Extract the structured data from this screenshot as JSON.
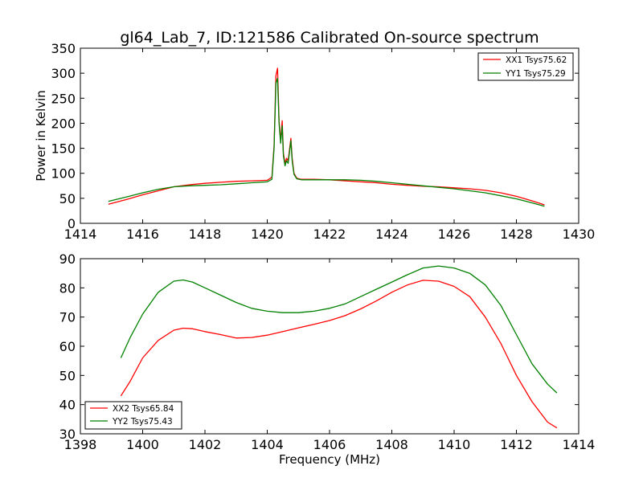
{
  "title": "gl64_Lab_7, ID:121586 Calibrated On-source spectrum",
  "colors": {
    "xx": "#ff0000",
    "yy": "#008000"
  },
  "chart_data": [
    {
      "type": "line",
      "ylabel": "Power in Kelvin",
      "xlabel": "",
      "xlim": [
        1414,
        1430
      ],
      "ylim": [
        0,
        350
      ],
      "xticks": [
        1414,
        1416,
        1418,
        1420,
        1422,
        1424,
        1426,
        1428,
        1430
      ],
      "yticks": [
        0,
        50,
        100,
        150,
        200,
        250,
        300,
        350
      ],
      "grid": false,
      "legend_position": "top-right",
      "series": [
        {
          "name": "XX1 Tsys75.62",
          "color": "#ff0000",
          "x": [
            1414.9,
            1415.5,
            1416,
            1416.5,
            1417,
            1417.5,
            1418,
            1418.5,
            1419,
            1419.5,
            1420,
            1420.15,
            1420.22,
            1420.28,
            1420.33,
            1420.38,
            1420.43,
            1420.48,
            1420.52,
            1420.57,
            1420.62,
            1420.67,
            1420.72,
            1420.76,
            1420.8,
            1420.86,
            1420.95,
            1421.1,
            1421.5,
            1422,
            1422.5,
            1423,
            1423.5,
            1424,
            1424.5,
            1425,
            1425.5,
            1426,
            1426.5,
            1427,
            1427.5,
            1428,
            1428.5,
            1428.9
          ],
          "y": [
            38,
            48,
            57,
            65,
            73,
            77,
            80,
            82,
            84,
            85,
            86,
            92,
            155,
            295,
            310,
            205,
            165,
            205,
            140,
            120,
            130,
            125,
            150,
            170,
            130,
            100,
            90,
            88,
            88,
            87,
            85,
            83,
            81,
            78,
            76,
            74,
            73,
            71,
            69,
            66,
            61,
            54,
            45,
            37
          ]
        },
        {
          "name": "YY1 Tsys75.29",
          "color": "#008000",
          "x": [
            1414.9,
            1415.5,
            1416,
            1416.5,
            1417,
            1417.5,
            1418,
            1418.5,
            1419,
            1419.5,
            1420,
            1420.15,
            1420.22,
            1420.28,
            1420.33,
            1420.38,
            1420.43,
            1420.48,
            1420.52,
            1420.57,
            1420.62,
            1420.67,
            1420.72,
            1420.76,
            1420.8,
            1420.86,
            1420.95,
            1421.1,
            1421.5,
            1422,
            1422.5,
            1423,
            1423.5,
            1424,
            1424.5,
            1425,
            1425.5,
            1426,
            1426.5,
            1427,
            1427.5,
            1428,
            1428.5,
            1428.9
          ],
          "y": [
            44,
            53,
            61,
            68,
            73,
            75,
            76,
            77,
            79,
            81,
            83,
            88,
            150,
            280,
            290,
            200,
            160,
            195,
            135,
            115,
            125,
            120,
            145,
            165,
            125,
            98,
            89,
            87,
            87,
            87,
            87,
            86,
            84,
            81,
            78,
            75,
            72,
            69,
            65,
            61,
            55,
            49,
            41,
            34
          ]
        }
      ]
    },
    {
      "type": "line",
      "ylabel": "",
      "xlabel": "Frequency (MHz)",
      "xlim": [
        1398,
        1414
      ],
      "ylim": [
        30,
        90
      ],
      "xticks": [
        1398,
        1400,
        1402,
        1404,
        1406,
        1408,
        1410,
        1412,
        1414
      ],
      "yticks": [
        30,
        40,
        50,
        60,
        70,
        80,
        90
      ],
      "grid": false,
      "legend_position": "bottom-left",
      "series": [
        {
          "name": "XX2 Tsys65.84",
          "color": "#ff0000",
          "x": [
            1399.3,
            1399.6,
            1400,
            1400.5,
            1401,
            1401.3,
            1401.6,
            1402,
            1402.5,
            1403,
            1403.5,
            1404,
            1404.5,
            1405,
            1405.5,
            1406,
            1406.5,
            1407,
            1407.5,
            1408,
            1408.5,
            1409,
            1409.5,
            1410,
            1410.5,
            1411,
            1411.5,
            1412,
            1412.5,
            1413,
            1413.3
          ],
          "y": [
            43,
            48,
            56,
            62,
            65.5,
            66.2,
            66,
            65,
            64,
            62.8,
            63,
            63.8,
            65,
            66.3,
            67.5,
            68.8,
            70.5,
            72.8,
            75.5,
            78.5,
            81,
            82.6,
            82.3,
            80.5,
            77,
            70,
            61,
            50,
            41,
            34,
            32
          ]
        },
        {
          "name": "YY2 Tsys75.43",
          "color": "#008000",
          "x": [
            1399.3,
            1399.6,
            1400,
            1400.5,
            1401,
            1401.3,
            1401.6,
            1402,
            1402.5,
            1403,
            1403.5,
            1404,
            1404.5,
            1405,
            1405.5,
            1406,
            1406.5,
            1407,
            1407.5,
            1408,
            1408.5,
            1409,
            1409.5,
            1410,
            1410.5,
            1411,
            1411.5,
            1412,
            1412.5,
            1413,
            1413.3
          ],
          "y": [
            56,
            63,
            71,
            78.5,
            82.3,
            82.7,
            82,
            80,
            77.5,
            75,
            73,
            72,
            71.5,
            71.5,
            72,
            73,
            74.5,
            77,
            79.5,
            82,
            84.5,
            86.8,
            87.5,
            86.8,
            85,
            81,
            74,
            64,
            54,
            47,
            44
          ]
        }
      ]
    }
  ]
}
